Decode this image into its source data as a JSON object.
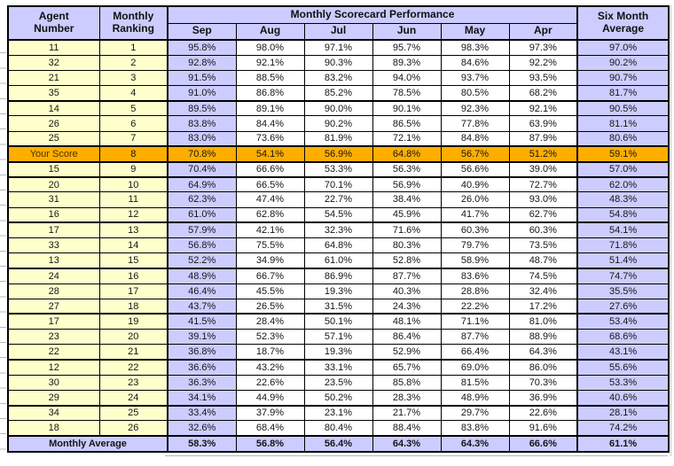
{
  "header": {
    "agent": {
      "l1": "Agent",
      "l2": "Number"
    },
    "ranking": {
      "l1": "Monthly",
      "l2": "Ranking"
    },
    "group": "Monthly Scorecard Performance",
    "months": [
      "Sep",
      "Aug",
      "Jul",
      "Jun",
      "May",
      "Apr"
    ],
    "average": {
      "l1": "Six Month",
      "l2": "Average"
    }
  },
  "rows": [
    {
      "agent": "11",
      "rank": "1",
      "values": [
        "95.8%",
        "98.0%",
        "97.1%",
        "95.7%",
        "98.3%",
        "97.3%"
      ],
      "avg": "97.0%",
      "highlight": false,
      "thick_after": false
    },
    {
      "agent": "32",
      "rank": "2",
      "values": [
        "92.8%",
        "92.1%",
        "90.3%",
        "89.3%",
        "84.6%",
        "92.2%"
      ],
      "avg": "90.2%",
      "highlight": false,
      "thick_after": false
    },
    {
      "agent": "21",
      "rank": "3",
      "values": [
        "91.5%",
        "88.5%",
        "83.2%",
        "94.0%",
        "93.7%",
        "93.5%"
      ],
      "avg": "90.7%",
      "highlight": false,
      "thick_after": false
    },
    {
      "agent": "35",
      "rank": "4",
      "values": [
        "91.0%",
        "86.8%",
        "85.2%",
        "78.5%",
        "80.5%",
        "68.2%"
      ],
      "avg": "81.7%",
      "highlight": false,
      "thick_after": true
    },
    {
      "agent": "14",
      "rank": "5",
      "values": [
        "89.5%",
        "89.1%",
        "90.0%",
        "90.1%",
        "92.3%",
        "92.1%"
      ],
      "avg": "90.5%",
      "highlight": false,
      "thick_after": false
    },
    {
      "agent": "26",
      "rank": "6",
      "values": [
        "83.8%",
        "84.4%",
        "90.2%",
        "86.5%",
        "77.8%",
        "63.9%"
      ],
      "avg": "81.1%",
      "highlight": false,
      "thick_after": false
    },
    {
      "agent": "25",
      "rank": "7",
      "values": [
        "83.0%",
        "73.6%",
        "81.9%",
        "72.1%",
        "84.8%",
        "87.9%"
      ],
      "avg": "80.6%",
      "highlight": false,
      "thick_after": true
    },
    {
      "agent": "Your Score",
      "rank": "8",
      "values": [
        "70.8%",
        "54.1%",
        "56.9%",
        "64.8%",
        "56.7%",
        "51.2%"
      ],
      "avg": "59.1%",
      "highlight": true,
      "thick_after": true
    },
    {
      "agent": "15",
      "rank": "9",
      "values": [
        "70.4%",
        "66.6%",
        "53.3%",
        "56.3%",
        "56.6%",
        "39.0%"
      ],
      "avg": "57.0%",
      "highlight": false,
      "thick_after": true
    },
    {
      "agent": "20",
      "rank": "10",
      "values": [
        "64.9%",
        "66.5%",
        "70.1%",
        "56.9%",
        "40.9%",
        "72.7%"
      ],
      "avg": "62.0%",
      "highlight": false,
      "thick_after": false
    },
    {
      "agent": "31",
      "rank": "11",
      "values": [
        "62.3%",
        "47.4%",
        "22.7%",
        "38.4%",
        "26.0%",
        "93.0%"
      ],
      "avg": "48.3%",
      "highlight": false,
      "thick_after": false
    },
    {
      "agent": "16",
      "rank": "12",
      "values": [
        "61.0%",
        "62.8%",
        "54.5%",
        "45.9%",
        "41.7%",
        "62.7%"
      ],
      "avg": "54.8%",
      "highlight": false,
      "thick_after": true
    },
    {
      "agent": "17",
      "rank": "13",
      "values": [
        "57.9%",
        "42.1%",
        "32.3%",
        "71.6%",
        "60.3%",
        "60.3%"
      ],
      "avg": "54.1%",
      "highlight": false,
      "thick_after": false
    },
    {
      "agent": "33",
      "rank": "14",
      "values": [
        "56.8%",
        "75.5%",
        "64.8%",
        "80.3%",
        "79.7%",
        "73.5%"
      ],
      "avg": "71.8%",
      "highlight": false,
      "thick_after": false
    },
    {
      "agent": "13",
      "rank": "15",
      "values": [
        "52.2%",
        "34.9%",
        "61.0%",
        "52.8%",
        "58.9%",
        "48.7%"
      ],
      "avg": "51.4%",
      "highlight": false,
      "thick_after": true
    },
    {
      "agent": "24",
      "rank": "16",
      "values": [
        "48.9%",
        "66.7%",
        "86.9%",
        "87.7%",
        "83.6%",
        "74.5%"
      ],
      "avg": "74.7%",
      "highlight": false,
      "thick_after": false
    },
    {
      "agent": "28",
      "rank": "17",
      "values": [
        "46.4%",
        "45.5%",
        "19.3%",
        "40.3%",
        "28.8%",
        "32.4%"
      ],
      "avg": "35.5%",
      "highlight": false,
      "thick_after": false
    },
    {
      "agent": "27",
      "rank": "18",
      "values": [
        "43.7%",
        "26.5%",
        "31.5%",
        "24.3%",
        "22.2%",
        "17.2%"
      ],
      "avg": "27.6%",
      "highlight": false,
      "thick_after": true
    },
    {
      "agent": "17",
      "rank": "19",
      "values": [
        "41.5%",
        "28.4%",
        "50.1%",
        "48.1%",
        "71.1%",
        "81.0%"
      ],
      "avg": "53.4%",
      "highlight": false,
      "thick_after": false
    },
    {
      "agent": "23",
      "rank": "20",
      "values": [
        "39.1%",
        "52.3%",
        "57.1%",
        "86.4%",
        "87.7%",
        "88.9%"
      ],
      "avg": "68.6%",
      "highlight": false,
      "thick_after": false
    },
    {
      "agent": "22",
      "rank": "21",
      "values": [
        "36.8%",
        "18.7%",
        "19.3%",
        "52.9%",
        "66.4%",
        "64.3%"
      ],
      "avg": "43.1%",
      "highlight": false,
      "thick_after": true
    },
    {
      "agent": "12",
      "rank": "22",
      "values": [
        "36.6%",
        "43.2%",
        "33.1%",
        "65.7%",
        "69.0%",
        "86.0%"
      ],
      "avg": "55.6%",
      "highlight": false,
      "thick_after": false
    },
    {
      "agent": "30",
      "rank": "23",
      "values": [
        "36.3%",
        "22.6%",
        "23.5%",
        "85.8%",
        "81.5%",
        "70.3%"
      ],
      "avg": "53.3%",
      "highlight": false,
      "thick_after": false
    },
    {
      "agent": "29",
      "rank": "24",
      "values": [
        "34.1%",
        "44.9%",
        "50.2%",
        "28.3%",
        "48.9%",
        "36.9%"
      ],
      "avg": "40.6%",
      "highlight": false,
      "thick_after": true
    },
    {
      "agent": "34",
      "rank": "25",
      "values": [
        "33.4%",
        "37.9%",
        "23.1%",
        "21.7%",
        "29.7%",
        "22.6%"
      ],
      "avg": "28.1%",
      "highlight": false,
      "thick_after": false
    },
    {
      "agent": "18",
      "rank": "26",
      "values": [
        "32.6%",
        "68.4%",
        "80.4%",
        "88.4%",
        "83.8%",
        "91.6%"
      ],
      "avg": "74.2%",
      "highlight": false,
      "thick_after": true
    }
  ],
  "footer": {
    "label": "Monthly Average",
    "values": [
      "58.3%",
      "56.8%",
      "56.4%",
      "64.3%",
      "64.3%",
      "66.6%"
    ],
    "avg": "61.1%"
  },
  "colors": {
    "header_bg": "#CCCCFF",
    "agent_col_bg": "#FFFFCC",
    "sep_avg_col_bg": "#CCCCFF",
    "mid_col_bg": "#FFFFFF",
    "highlight_row_bg": "#FFAE00",
    "border": "#000000"
  }
}
